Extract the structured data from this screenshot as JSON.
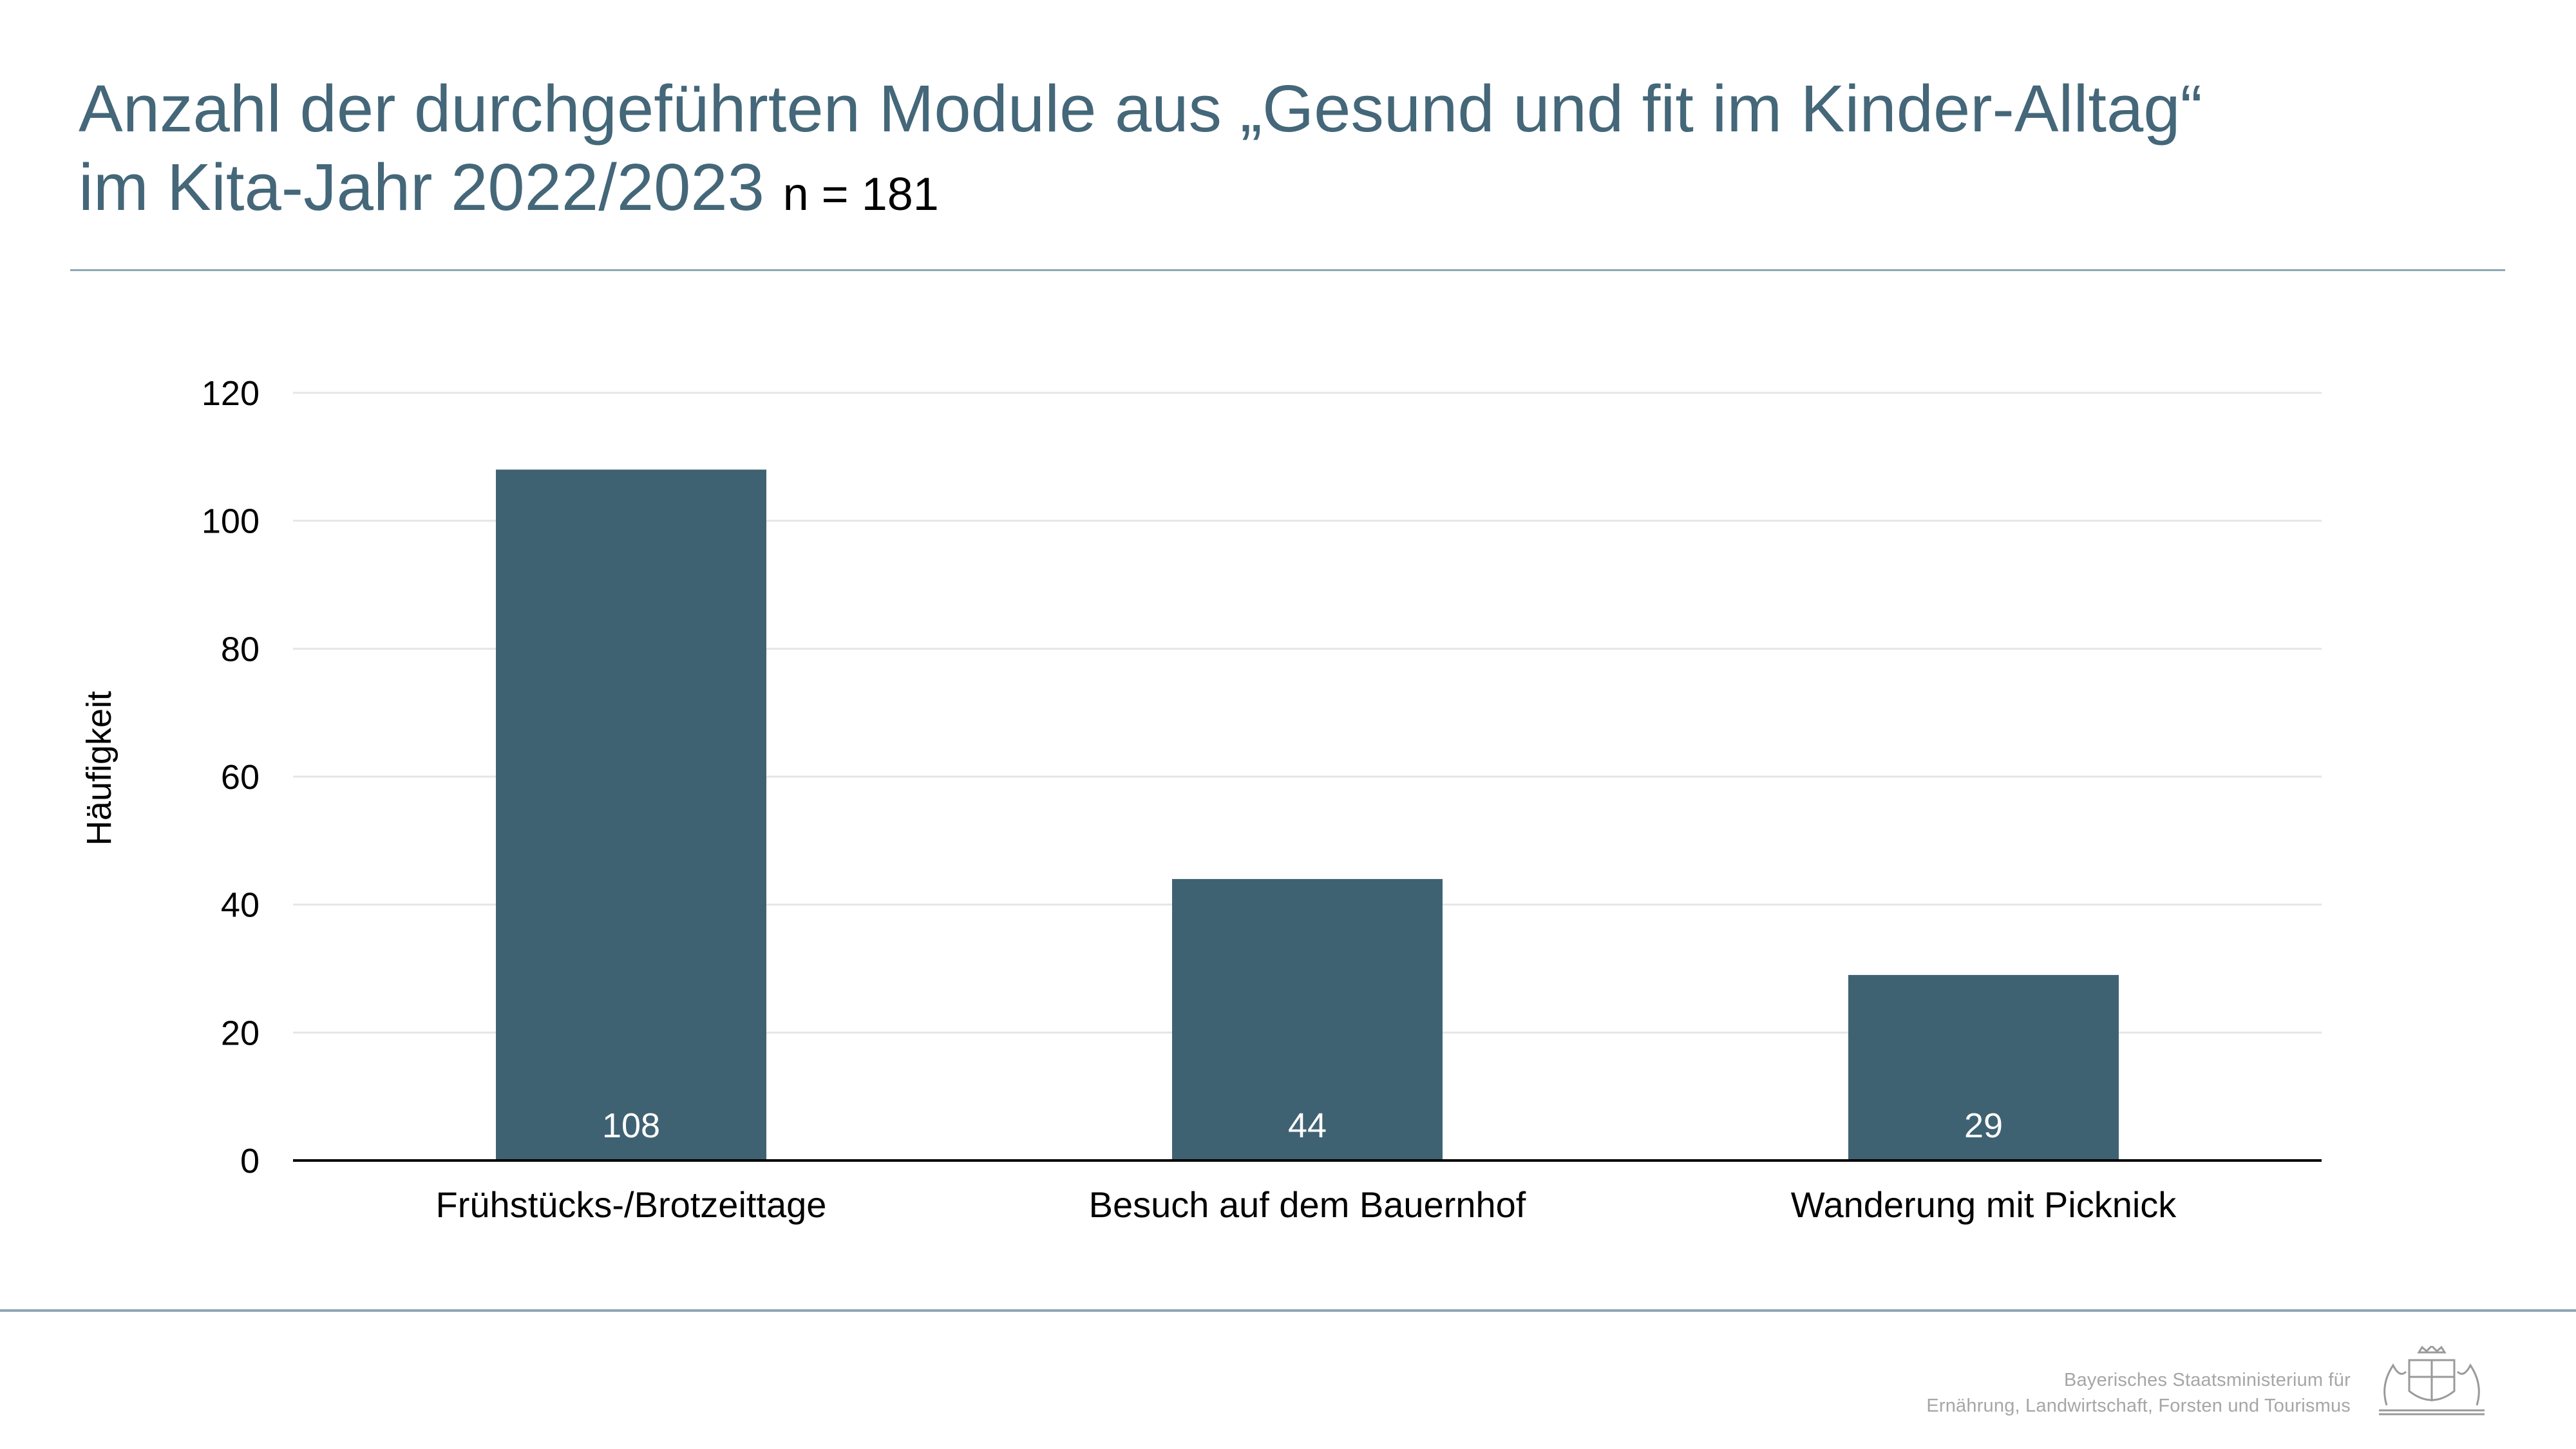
{
  "title": {
    "line1": "Anzahl der durchgeführten Module aus „Gesund und fit im Kinder-Alltag“",
    "line2": "im Kita-Jahr 2022/2023",
    "n_label": "n = 181"
  },
  "footer": {
    "ministry_line1": "Bayerisches Staatsministerium für",
    "ministry_line2": "Ernährung, Landwirtschaft, Forsten und Tourismus",
    "logo_icon": "bavarian-coat-of-arms-icon"
  },
  "colors": {
    "title": "#446779",
    "bar": "#3f6273",
    "rule": "#8fa6b2",
    "grid": "#e6e6e6",
    "ministry_text": "#a6a6a6"
  },
  "chart_data": {
    "type": "bar",
    "categories": [
      "Frühstücks-/Brotzeittage",
      "Besuch auf dem Bauernhof",
      "Wanderung mit Picknick"
    ],
    "values": [
      108,
      44,
      29
    ],
    "xlabel": "",
    "ylabel": "Häufigkeit",
    "ylim": [
      0,
      120
    ],
    "yticks": [
      0,
      20,
      40,
      60,
      80,
      100,
      120
    ],
    "grid": true,
    "data_labels": true,
    "legend": "none"
  }
}
